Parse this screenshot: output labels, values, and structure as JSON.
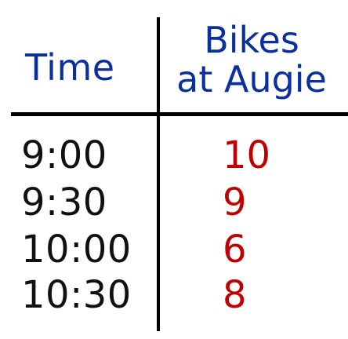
{
  "table": {
    "headers": {
      "time": "Time",
      "bikes_line1": "Bikes",
      "bikes_line2": "at Augie"
    },
    "rows": [
      {
        "time": "9:00",
        "bikes": "10"
      },
      {
        "time": "9:30",
        "bikes": "9"
      },
      {
        "time": "10:00",
        "bikes": "6"
      },
      {
        "time": "10:30",
        "bikes": "8"
      }
    ]
  },
  "colors": {
    "header_text": "#0b2f9c",
    "time_text": "#111111",
    "count_text": "#c00000",
    "lines": "#000000"
  }
}
